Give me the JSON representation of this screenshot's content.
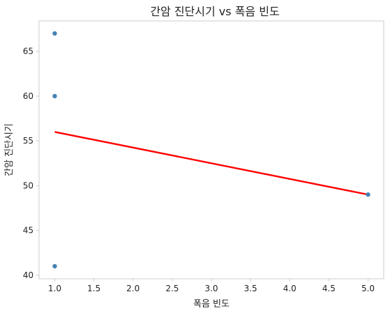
{
  "chart_data": {
    "type": "scatter",
    "title": "간암 진단시기 vs 폭음 빈도",
    "xlabel": "폭음 빈도",
    "ylabel": "간암 진단시기",
    "xlim": [
      0.8,
      5.2
    ],
    "ylim": [
      39.6,
      68.4
    ],
    "xticks": [
      1.0,
      1.5,
      2.0,
      2.5,
      3.0,
      3.5,
      4.0,
      4.5,
      5.0
    ],
    "xtick_labels": [
      "1.0",
      "1.5",
      "2.0",
      "2.5",
      "3.0",
      "3.5",
      "4.0",
      "4.5",
      "5.0"
    ],
    "yticks": [
      40,
      45,
      50,
      55,
      60,
      65
    ],
    "ytick_labels": [
      "40",
      "45",
      "50",
      "55",
      "60",
      "65"
    ],
    "grid": false,
    "series": [
      {
        "kind": "scatter",
        "color": "#4682b4",
        "points": [
          [
            1,
            67
          ],
          [
            1,
            60
          ],
          [
            1,
            41
          ],
          [
            5,
            49
          ]
        ]
      },
      {
        "kind": "line",
        "color": "#ff0000",
        "points": [
          [
            1,
            56
          ],
          [
            5,
            49
          ]
        ]
      }
    ]
  }
}
